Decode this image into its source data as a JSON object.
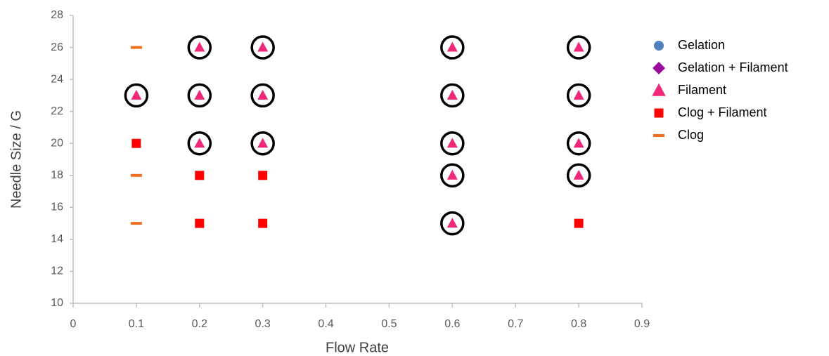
{
  "chart_data": {
    "type": "scatter",
    "x_label": "Flow Rate",
    "y_label": "Needle Size / G",
    "xlim": [
      0,
      0.9
    ],
    "xticks": [
      0,
      0.1,
      0.2,
      0.3,
      0.4,
      0.5,
      0.6,
      0.7,
      0.8,
      0.9
    ],
    "ylim": [
      10,
      28
    ],
    "yticks": [
      10,
      12,
      14,
      16,
      18,
      20,
      22,
      24,
      26,
      28
    ],
    "grid": false,
    "legend": "right",
    "series": [
      {
        "name": "Gelation",
        "color": "#4f81bd",
        "marker": "circle",
        "x": [],
        "values": []
      },
      {
        "name": "Gelation + Filament",
        "color": "#9c0c9c",
        "marker": "diamond",
        "x": [],
        "values": []
      },
      {
        "name": "Filament",
        "color": "#f0287a",
        "marker": "triangle",
        "ring_color": "#000000",
        "x": [
          0.1,
          0.2,
          0.2,
          0.2,
          0.3,
          0.3,
          0.3,
          0.6,
          0.6,
          0.6,
          0.6,
          0.6,
          0.8,
          0.8,
          0.8,
          0.8
        ],
        "values": [
          23,
          26,
          23,
          20,
          26,
          23,
          20,
          26,
          23,
          20,
          18,
          15,
          26,
          23,
          20,
          18
        ]
      },
      {
        "name": "Clog + Filament",
        "color": "#ff0000",
        "marker": "square",
        "x": [
          0.1,
          0.2,
          0.2,
          0.3,
          0.3,
          0.8
        ],
        "values": [
          20,
          18,
          15,
          18,
          15,
          15
        ]
      },
      {
        "name": "Clog",
        "color": "#f07020",
        "marker": "dash",
        "x": [
          0.1,
          0.1,
          0.1
        ],
        "values": [
          26,
          18,
          15
        ]
      }
    ]
  }
}
